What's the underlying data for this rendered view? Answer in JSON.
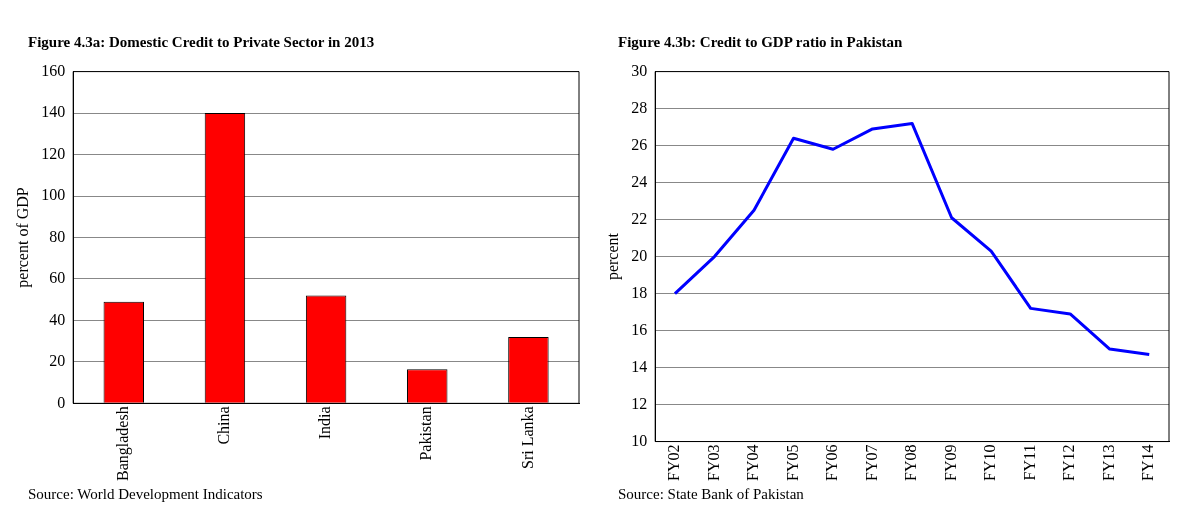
{
  "chart_data": [
    {
      "type": "bar",
      "title": "Figure 4.3a: Domestic Credit to Private Sector in 2013",
      "ylabel": "percent of GDP",
      "categories": [
        "Bangladesh",
        "China",
        "India",
        "Pakistan",
        "Sri Lanka"
      ],
      "values": [
        49,
        140,
        52,
        16.5,
        32
      ],
      "color": "#ff0000",
      "ylim": [
        0,
        160
      ],
      "yticks": [
        0,
        20,
        40,
        60,
        80,
        100,
        120,
        140,
        160
      ],
      "grid": "y",
      "annotations": [
        "Source: World Development Indicators"
      ]
    },
    {
      "type": "line",
      "title": "Figure 4.3b: Credit to GDP ratio in Pakistan",
      "ylabel": "percent",
      "categories": [
        "FY02",
        "FY03",
        "FY04",
        "FY05",
        "FY06",
        "FY07",
        "FY08",
        "FY09",
        "FY10",
        "FY11",
        "FY12",
        "FY13",
        "FY14"
      ],
      "values": [
        18.0,
        20.0,
        22.5,
        26.4,
        25.8,
        26.9,
        27.2,
        22.1,
        20.3,
        17.2,
        16.9,
        15.0,
        14.7
      ],
      "color": "#0000ff",
      "marker": "none",
      "ylim": [
        10,
        30
      ],
      "yticks": [
        10,
        12,
        14,
        16,
        18,
        20,
        22,
        24,
        26,
        28,
        30
      ],
      "grid": "y",
      "annotations": [
        "Source: State Bank of Pakistan"
      ]
    }
  ]
}
